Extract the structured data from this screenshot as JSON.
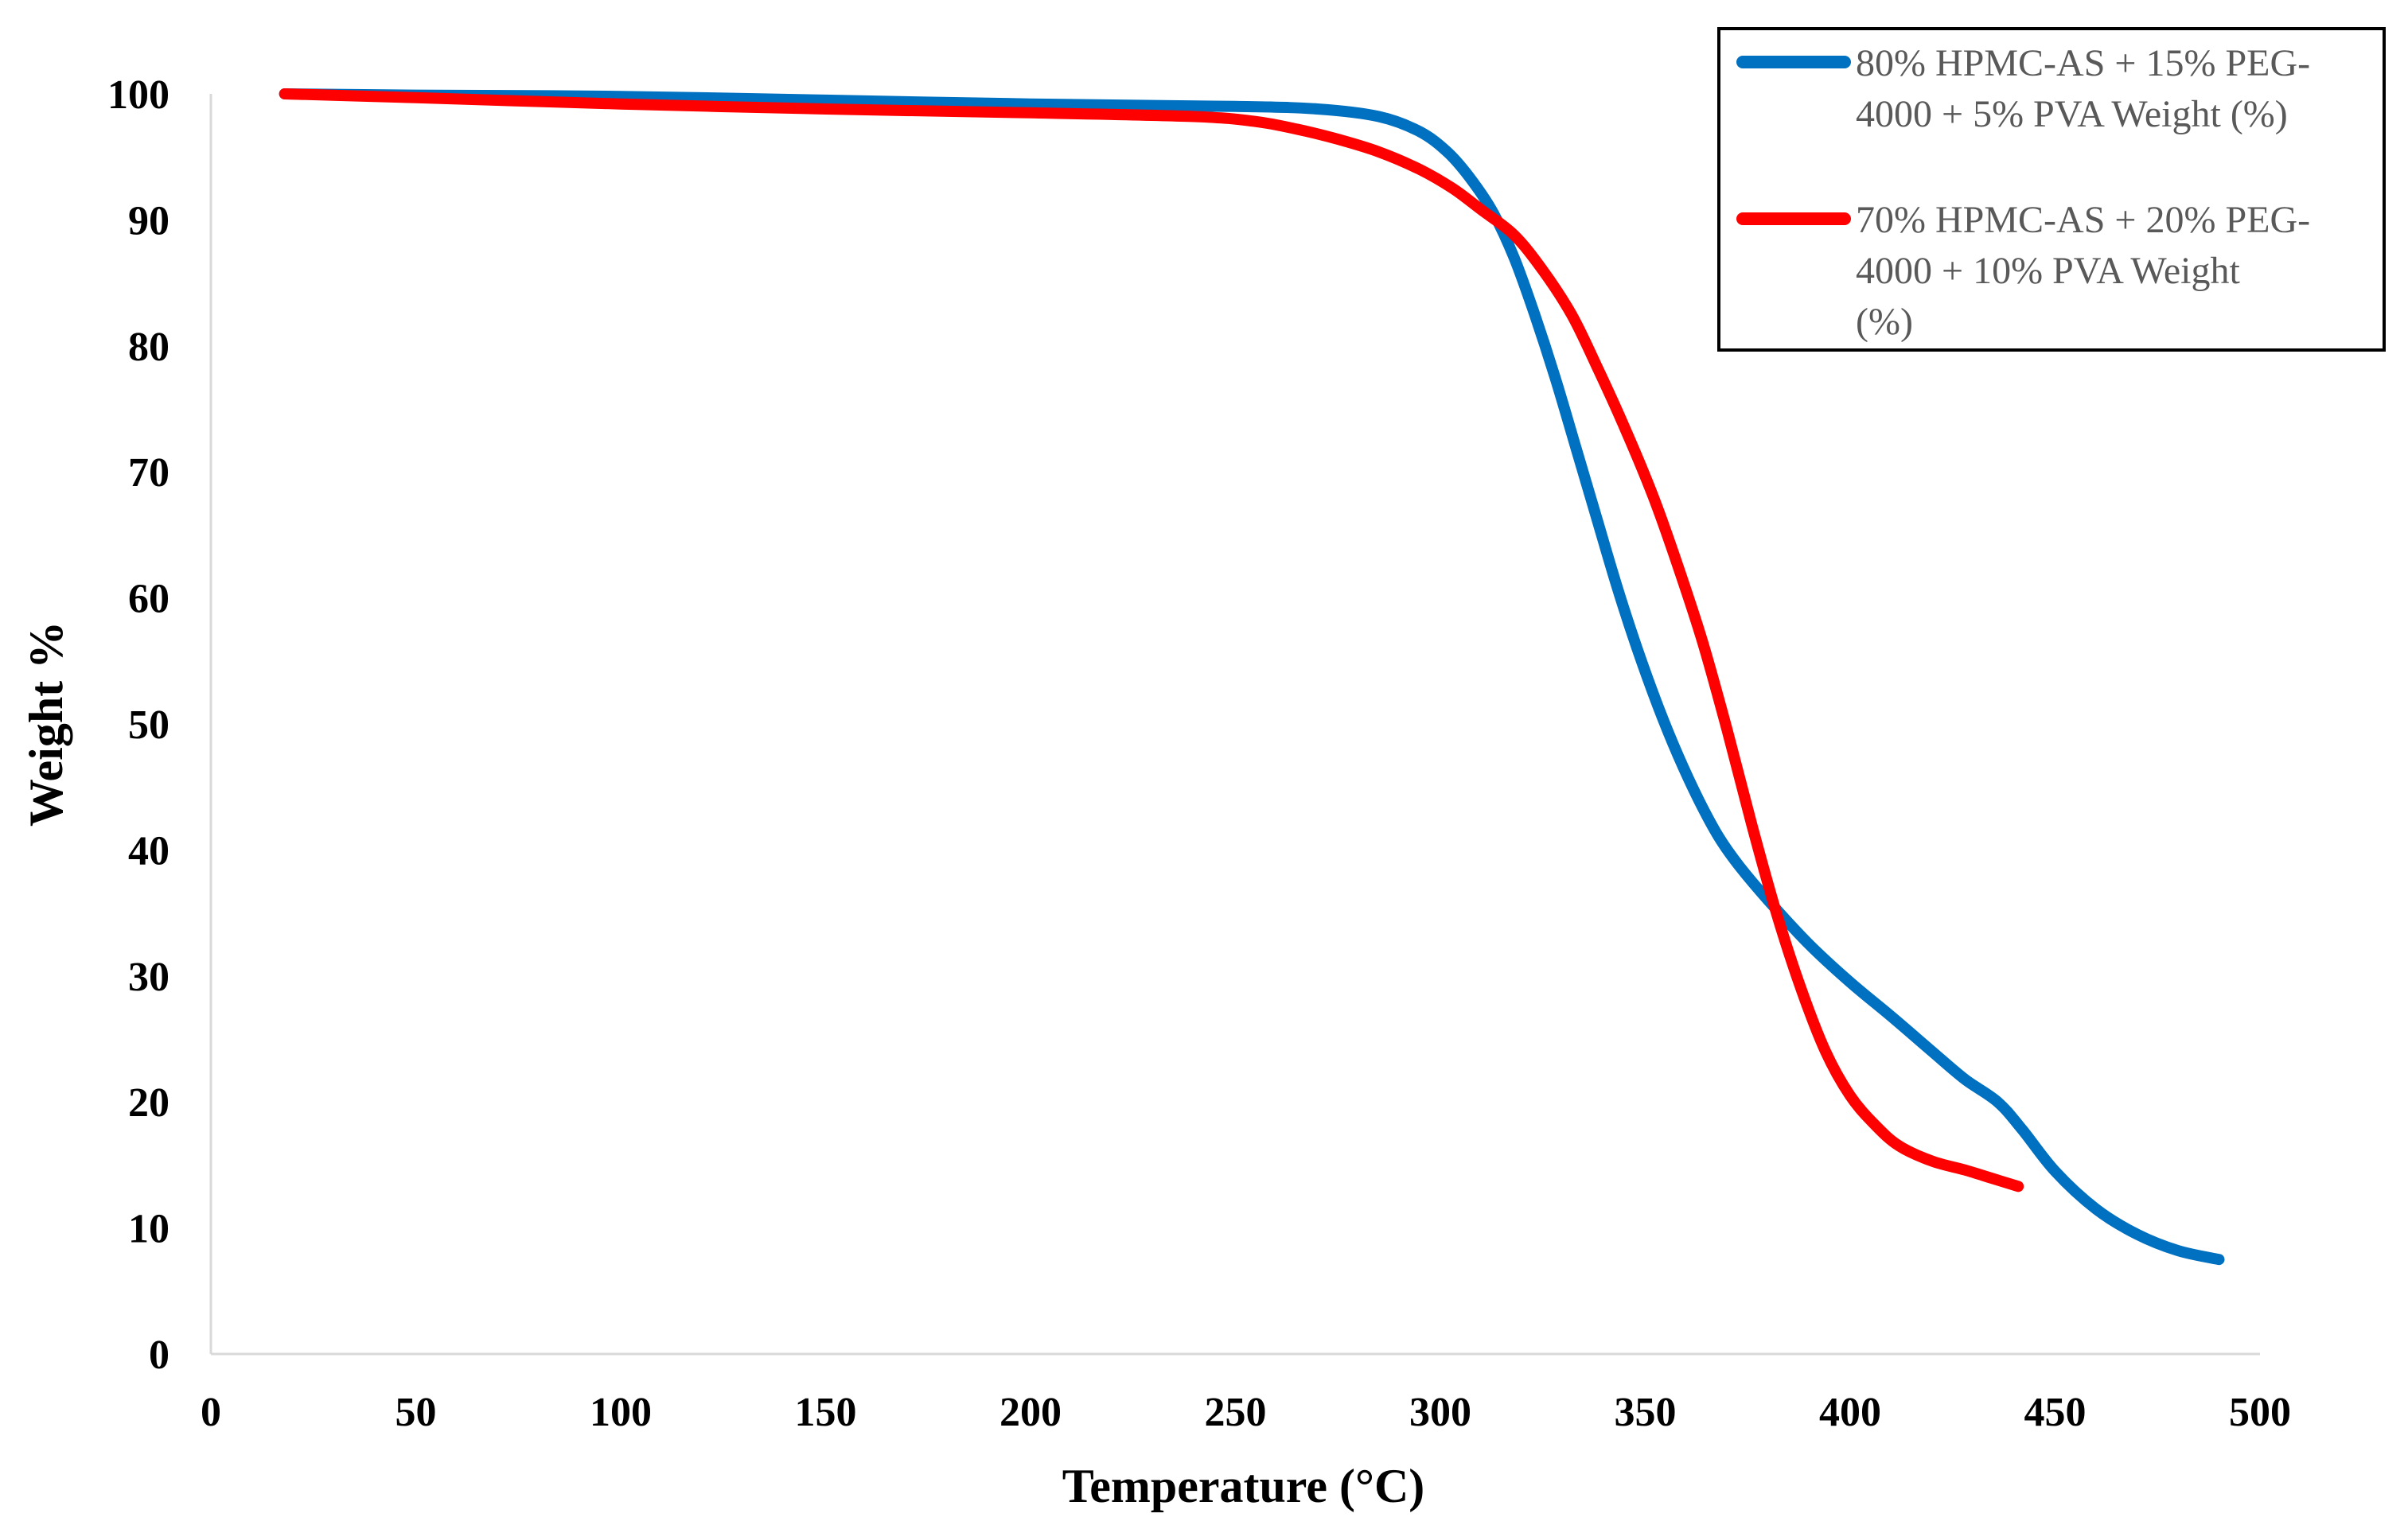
{
  "chart_data": {
    "type": "line",
    "xlabel": "Temperature (°C)",
    "ylabel": "Weight %",
    "xlim": [
      0,
      500
    ],
    "ylim": [
      0,
      100
    ],
    "x_ticks": [
      0,
      50,
      100,
      150,
      200,
      250,
      300,
      350,
      400,
      450,
      500
    ],
    "y_ticks": [
      0,
      10,
      20,
      30,
      40,
      50,
      60,
      70,
      80,
      90,
      100
    ],
    "grid": false,
    "legend_position": "top-right",
    "series": [
      {
        "name": "80% HPMC-AS + 15% PEG-4000 + 5% PVA Weight (%)",
        "legend_lines": [
          "80% HPMC-AS + 15% PEG-",
          "4000 + 5% PVA Weight (%)"
        ],
        "color": "#0070C0",
        "points": [
          [
            18,
            100
          ],
          [
            50,
            99.9
          ],
          [
            100,
            99.8
          ],
          [
            150,
            99.5
          ],
          [
            200,
            99.2
          ],
          [
            250,
            99.0
          ],
          [
            270,
            98.8
          ],
          [
            285,
            98.2
          ],
          [
            295,
            97.0
          ],
          [
            302,
            95.3
          ],
          [
            308,
            93.0
          ],
          [
            313,
            90.5
          ],
          [
            318,
            87.0
          ],
          [
            323,
            82.5
          ],
          [
            328,
            77.5
          ],
          [
            333,
            72.0
          ],
          [
            338,
            66.5
          ],
          [
            343,
            61.0
          ],
          [
            348,
            56.0
          ],
          [
            353,
            51.5
          ],
          [
            358,
            47.5
          ],
          [
            363,
            44.0
          ],
          [
            368,
            41.0
          ],
          [
            373,
            38.7
          ],
          [
            380,
            36.0
          ],
          [
            390,
            32.5
          ],
          [
            400,
            29.5
          ],
          [
            410,
            26.8
          ],
          [
            420,
            24.0
          ],
          [
            428,
            21.8
          ],
          [
            436,
            20.0
          ],
          [
            442,
            17.8
          ],
          [
            450,
            14.5
          ],
          [
            460,
            11.5
          ],
          [
            470,
            9.5
          ],
          [
            480,
            8.2
          ],
          [
            490,
            7.5
          ]
        ]
      },
      {
        "name": "70% HPMC-AS + 20% PEG-4000 + 10% PVA Weight (%)",
        "legend_lines": [
          "70% HPMC-AS + 20% PEG-",
          "4000 + 10% PVA Weight",
          "(%)"
        ],
        "color": "#FF0000",
        "points": [
          [
            18,
            100
          ],
          [
            50,
            99.7
          ],
          [
            100,
            99.2
          ],
          [
            150,
            98.8
          ],
          [
            200,
            98.5
          ],
          [
            240,
            98.2
          ],
          [
            255,
            97.8
          ],
          [
            265,
            97.2
          ],
          [
            275,
            96.4
          ],
          [
            285,
            95.4
          ],
          [
            295,
            94.0
          ],
          [
            303,
            92.5
          ],
          [
            310,
            90.8
          ],
          [
            318,
            88.8
          ],
          [
            325,
            86.0
          ],
          [
            332,
            82.5
          ],
          [
            338,
            78.5
          ],
          [
            345,
            73.5
          ],
          [
            352,
            68.0
          ],
          [
            358,
            62.5
          ],
          [
            364,
            56.5
          ],
          [
            370,
            49.5
          ],
          [
            376,
            42.0
          ],
          [
            382,
            35.0
          ],
          [
            388,
            29.0
          ],
          [
            394,
            24.0
          ],
          [
            400,
            20.5
          ],
          [
            406,
            18.2
          ],
          [
            412,
            16.5
          ],
          [
            420,
            15.3
          ],
          [
            428,
            14.6
          ],
          [
            435,
            13.9
          ],
          [
            441,
            13.3
          ]
        ]
      }
    ]
  }
}
